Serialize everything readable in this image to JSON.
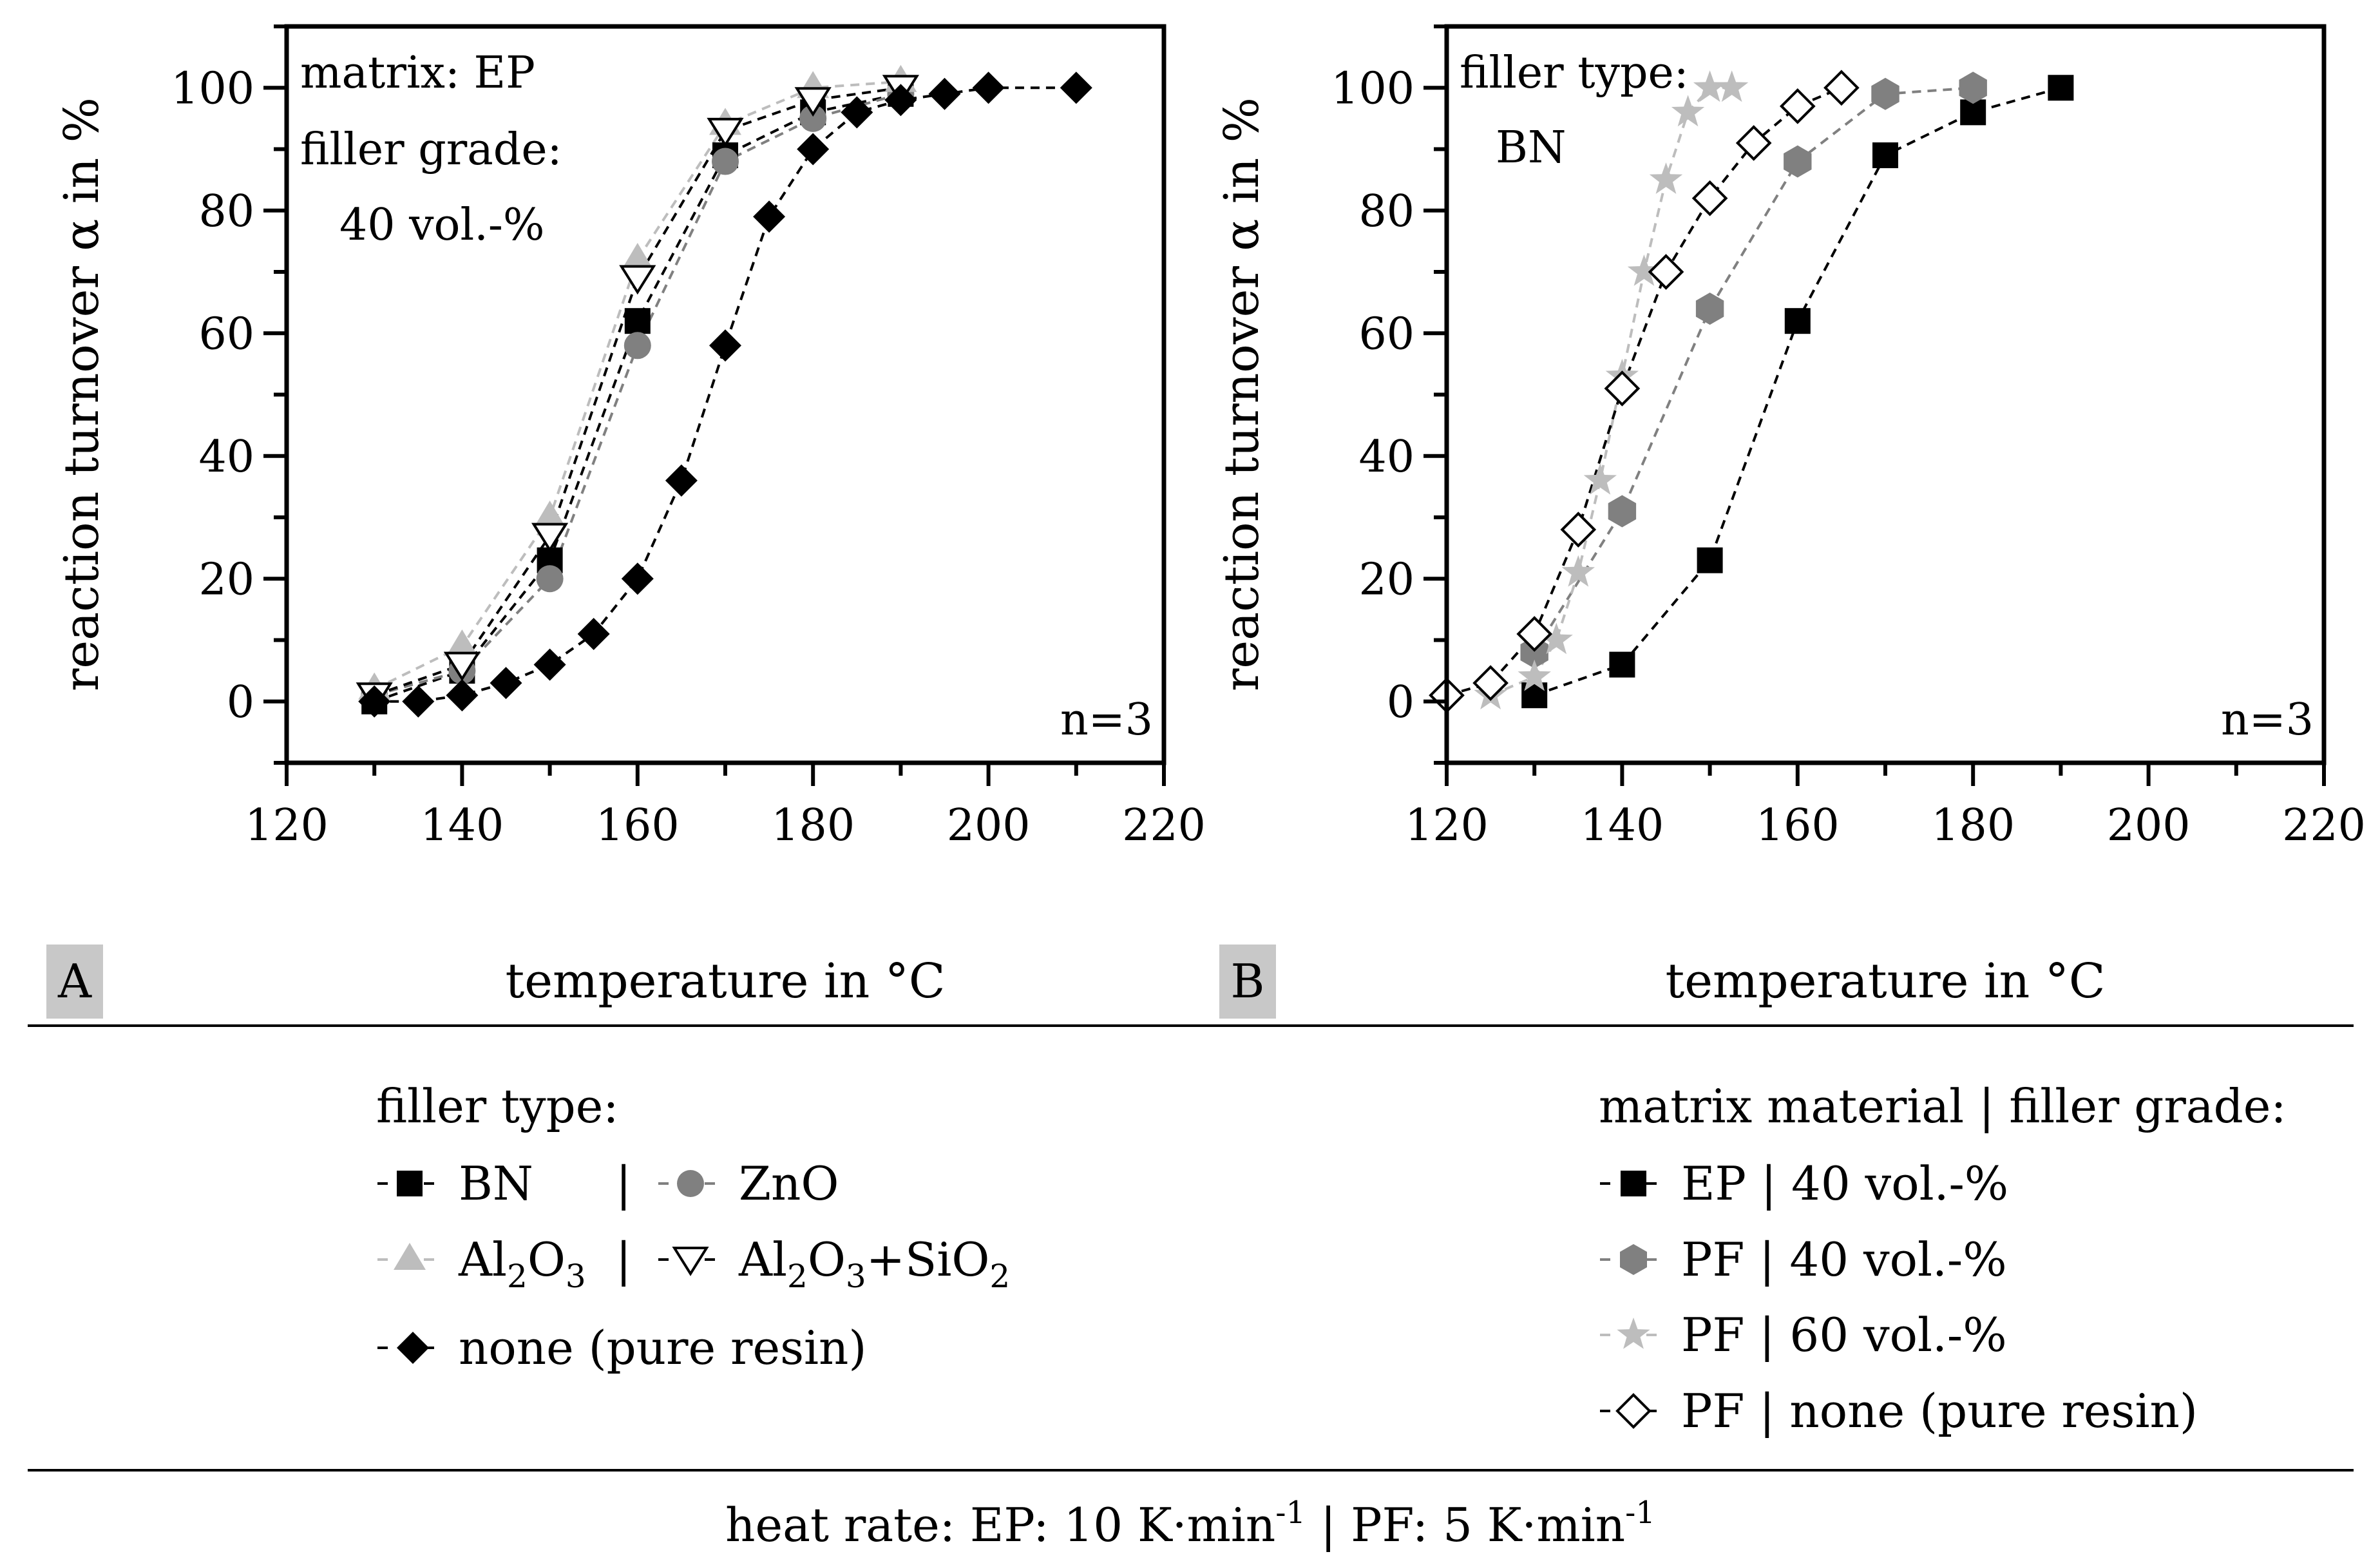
{
  "figure": {
    "panel_a_tag": "A",
    "panel_b_tag": "B",
    "footer": {
      "prefix": "heat rate: EP: 10 K·min",
      "sup1": "-1",
      "middle": " | PF: 5 K·min",
      "sup2": "-1"
    },
    "legend_a": {
      "title": "filler type:",
      "entries": [
        {
          "label": "BN",
          "separator": "|"
        },
        {
          "label": "ZnO"
        },
        {
          "label_parts": [
            "Al",
            "2",
            "O",
            "3"
          ],
          "separator": "|"
        },
        {
          "label_parts": [
            "Al",
            "2",
            "O",
            "3",
            "+SiO",
            "2"
          ]
        },
        {
          "label": "none (pure resin)"
        }
      ]
    },
    "legend_b": {
      "title": "matrix material | filler grade:",
      "entries": [
        {
          "label": "EP | 40 vol.-%"
        },
        {
          "label": "PF | 40 vol.-%"
        },
        {
          "label": "PF | 60 vol.-%"
        },
        {
          "label": "PF | none (pure resin)"
        }
      ]
    },
    "colors": {
      "black": "#000000",
      "dark_gray": "#808080",
      "light_gray": "#bdbdbd",
      "tag_bg": "#c8c8c8",
      "white": "#ffffff"
    }
  },
  "chart_data": [
    {
      "type": "line",
      "panel": "A",
      "title": "",
      "xlabel": "temperature in °C",
      "ylabel": "reaction turnover α in %",
      "xlim": [
        120,
        220
      ],
      "ylim": [
        -10,
        110
      ],
      "xticks": [
        120,
        140,
        160,
        180,
        200,
        220
      ],
      "yticks": [
        0,
        20,
        40,
        60,
        80,
        100
      ],
      "annotations": [
        "matrix: EP",
        "filler grade:",
        "40 vol.-%",
        "n=3"
      ],
      "series": [
        {
          "name": "BN",
          "marker": "square",
          "color": "#000000",
          "x": [
            130,
            140,
            150,
            160,
            170,
            180,
            190
          ],
          "y": [
            0,
            5,
            23,
            62,
            89,
            96,
            99
          ]
        },
        {
          "name": "ZnO",
          "marker": "circle",
          "color": "#808080",
          "x": [
            130,
            140,
            150,
            160,
            170,
            180,
            190
          ],
          "y": [
            1,
            5,
            20,
            58,
            88,
            95,
            99
          ]
        },
        {
          "name": "Al2O3",
          "marker": "triangle-up",
          "color": "#bdbdbd",
          "x": [
            130,
            140,
            150,
            160,
            170,
            180,
            190
          ],
          "y": [
            2,
            9,
            30,
            72,
            94,
            100,
            101
          ]
        },
        {
          "name": "Al2O3+SiO2",
          "marker": "triangle-down",
          "color": "#000000",
          "x": [
            130,
            140,
            150,
            160,
            170,
            180,
            190
          ],
          "y": [
            1,
            6,
            27,
            69,
            93,
            98,
            100
          ]
        },
        {
          "name": "none (pure resin)",
          "marker": "diamond",
          "color": "#000000",
          "x": [
            130,
            135,
            140,
            145,
            150,
            155,
            160,
            165,
            170,
            175,
            180,
            185,
            190,
            195,
            200,
            210
          ],
          "y": [
            0,
            0,
            1,
            3,
            6,
            11,
            20,
            36,
            58,
            79,
            90,
            96,
            98,
            99,
            100,
            100
          ]
        }
      ]
    },
    {
      "type": "line",
      "panel": "B",
      "title": "",
      "xlabel": "temperature in °C",
      "ylabel": "reaction turnover α in %",
      "xlim": [
        120,
        220
      ],
      "ylim": [
        -10,
        110
      ],
      "xticks": [
        120,
        140,
        160,
        180,
        200,
        220
      ],
      "yticks": [
        0,
        20,
        40,
        60,
        80,
        100
      ],
      "annotations": [
        "filler type:",
        "BN",
        "n=3"
      ],
      "series": [
        {
          "name": "EP | 40 vol.-%",
          "marker": "square",
          "color": "#000000",
          "x": [
            130,
            140,
            150,
            160,
            170,
            180,
            190
          ],
          "y": [
            1,
            6,
            23,
            62,
            89,
            96,
            100
          ]
        },
        {
          "name": "PF | 40 vol.-%",
          "marker": "hexagon",
          "color": "#808080",
          "x": [
            130,
            140,
            150,
            160,
            170,
            180
          ],
          "y": [
            8,
            31,
            64,
            88,
            99,
            100
          ]
        },
        {
          "name": "PF | 60 vol.-%",
          "marker": "star",
          "color": "#bdbdbd",
          "x": [
            125,
            130,
            132.5,
            135,
            137.5,
            140,
            142.5,
            145,
            147.5,
            150,
            152.5
          ],
          "y": [
            1,
            4,
            10,
            21,
            36,
            53,
            70,
            85,
            96,
            100,
            100
          ]
        },
        {
          "name": "PF | none (pure resin)",
          "marker": "diamond-open",
          "color": "#000000",
          "x": [
            120,
            125,
            130,
            135,
            140,
            145,
            150,
            155,
            160,
            165
          ],
          "y": [
            1,
            3,
            11,
            28,
            51,
            70,
            82,
            91,
            97,
            100
          ]
        }
      ]
    }
  ]
}
